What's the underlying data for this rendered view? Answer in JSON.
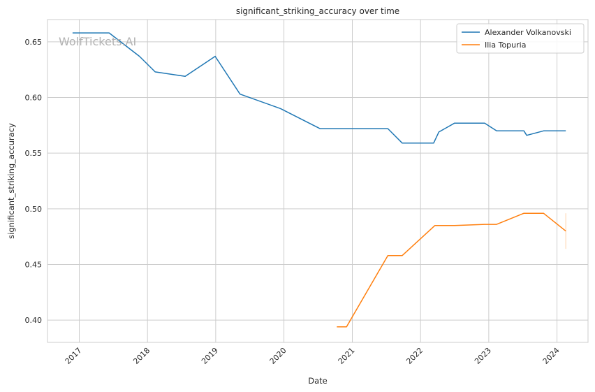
{
  "chart_data": {
    "type": "line",
    "title": "significant_striking_accuracy over time",
    "xlabel": "Date",
    "ylabel": "significant_striking_accuracy",
    "watermark": "WolfTickets.AI",
    "x_ticks": [
      "2017",
      "2018",
      "2019",
      "2020",
      "2021",
      "2022",
      "2023",
      "2024"
    ],
    "y_ticks": [
      "0.40",
      "0.45",
      "0.50",
      "0.55",
      "0.60",
      "0.65"
    ],
    "xlim": [
      "2016-07-15",
      "2024-06-15"
    ],
    "ylim": [
      0.38,
      0.67
    ],
    "grid": true,
    "legend_position": "top-right",
    "series": [
      {
        "name": "Alexander Volkanovski",
        "color": "#1f77b4",
        "points": [
          [
            "2016-11-26",
            0.658
          ],
          [
            "2017-06-10",
            0.658
          ],
          [
            "2017-11-19",
            0.637
          ],
          [
            "2018-02-11",
            0.623
          ],
          [
            "2018-07-22",
            0.619
          ],
          [
            "2018-12-29",
            0.637
          ],
          [
            "2019-05-11",
            0.603
          ],
          [
            "2019-12-14",
            0.59
          ],
          [
            "2020-07-12",
            0.572
          ],
          [
            "2021-07-10",
            0.572
          ],
          [
            "2021-09-25",
            0.559
          ],
          [
            "2022-03-12",
            0.559
          ],
          [
            "2022-04-09",
            0.569
          ],
          [
            "2022-07-02",
            0.577
          ],
          [
            "2022-12-10",
            0.577
          ],
          [
            "2023-02-12",
            0.57
          ],
          [
            "2023-07-08",
            0.57
          ],
          [
            "2023-07-23",
            0.566
          ],
          [
            "2023-10-21",
            0.57
          ],
          [
            "2024-02-17",
            0.57
          ]
        ]
      },
      {
        "name": "Ilia Topuria",
        "color": "#ff7f0e",
        "points": [
          [
            "2020-10-10",
            0.394
          ],
          [
            "2020-12-01",
            0.394
          ],
          [
            "2021-07-10",
            0.458
          ],
          [
            "2021-09-25",
            0.458
          ],
          [
            "2022-03-19",
            0.485
          ],
          [
            "2022-07-02",
            0.485
          ],
          [
            "2022-12-10",
            0.486
          ],
          [
            "2023-02-12",
            0.486
          ],
          [
            "2023-07-08",
            0.496
          ],
          [
            "2023-10-21",
            0.496
          ],
          [
            "2024-02-17",
            0.48
          ]
        ]
      }
    ]
  }
}
